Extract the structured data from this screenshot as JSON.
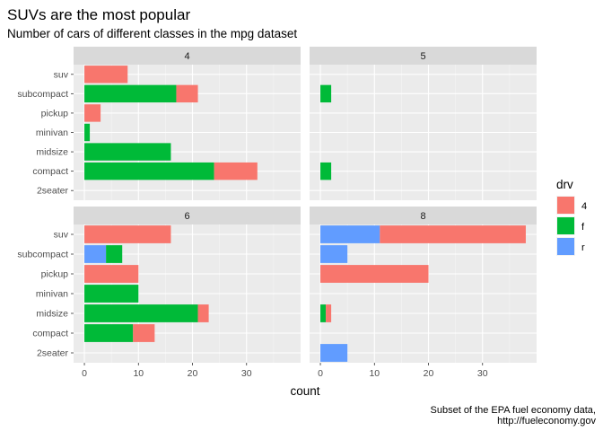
{
  "chart_data": {
    "type": "bar",
    "orientation": "horizontal",
    "stacked": true,
    "title": "SUVs are the most popular",
    "subtitle": "Number of cars of different classes in the mpg dataset",
    "xlabel": "count",
    "ylabel": "",
    "caption_lines": [
      "Subset of the EPA fuel economy data,",
      "http://fueleconomy.gov"
    ],
    "xlim": [
      -2,
      40
    ],
    "xticks": [
      0,
      10,
      20,
      30
    ],
    "categories": [
      "2seater",
      "compact",
      "midsize",
      "minivan",
      "pickup",
      "subcompact",
      "suv"
    ],
    "legend": {
      "title": "drv",
      "placement": "right",
      "entries": [
        {
          "key": "4",
          "label": "4",
          "color": "#F8766D"
        },
        {
          "key": "f",
          "label": "f",
          "color": "#00BA38"
        },
        {
          "key": "r",
          "label": "r",
          "color": "#619CFF"
        }
      ]
    },
    "stack_order": [
      "r",
      "f",
      "4"
    ],
    "panels": [
      {
        "label": "4",
        "values": {
          "suv": {
            "4": 8
          },
          "subcompact": {
            "f": 17,
            "4": 4
          },
          "pickup": {
            "4": 3
          },
          "minivan": {
            "f": 1
          },
          "midsize": {
            "f": 16
          },
          "compact": {
            "f": 24,
            "4": 8
          },
          "2seater": {}
        }
      },
      {
        "label": "5",
        "values": {
          "suv": {},
          "subcompact": {
            "f": 2
          },
          "pickup": {},
          "minivan": {},
          "midsize": {},
          "compact": {
            "f": 2
          },
          "2seater": {}
        }
      },
      {
        "label": "6",
        "values": {
          "suv": {
            "4": 16
          },
          "subcompact": {
            "r": 4,
            "f": 3
          },
          "pickup": {
            "4": 10
          },
          "minivan": {
            "f": 10
          },
          "midsize": {
            "f": 21,
            "4": 2
          },
          "compact": {
            "f": 9,
            "4": 4
          },
          "2seater": {}
        }
      },
      {
        "label": "8",
        "values": {
          "suv": {
            "r": 11,
            "4": 27
          },
          "subcompact": {
            "r": 5
          },
          "pickup": {
            "4": 20
          },
          "minivan": {},
          "midsize": {
            "f": 1,
            "4": 1
          },
          "compact": {},
          "2seater": {
            "r": 5
          }
        }
      }
    ],
    "colors": {
      "panel_background": "#EBEBEB",
      "strip_background": "#D9D9D9",
      "grid_major": "#FFFFFF",
      "grid_minor": "#F5F5F5"
    }
  }
}
